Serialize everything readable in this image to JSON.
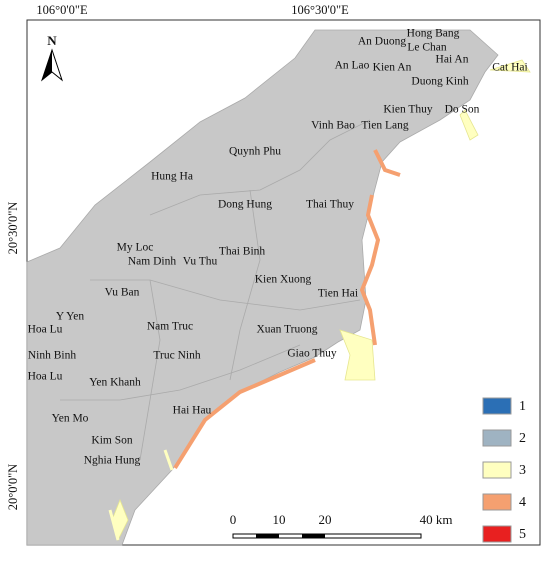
{
  "north_arrow": "N",
  "coordinates": {
    "top": [
      "106°0'0\"E",
      "106°30'0\"E"
    ],
    "left": [
      "20°30'0\"N",
      "20°0'0\"N"
    ]
  },
  "places": [
    "An Duong",
    "Hong Bang",
    "Le Chan",
    "Hai An",
    "An Lao",
    "Kien An",
    "Cat Hai",
    "Duong Kinh",
    "Do Son",
    "Kien Thuy",
    "Vinh Bao",
    "Tien Lang",
    "Quynh Phu",
    "Hung Ha",
    "Dong Hung",
    "Thai Thuy",
    "My Loc",
    "Thai Binh",
    "Nam Dinh",
    "Vu Thu",
    "Kien Xuong",
    "Tien Hai",
    "Vu Ban",
    "Y Yen",
    "Hoa Lu",
    "Nam Truc",
    "Xuan Truong",
    "Ninh Binh",
    "Truc Ninh",
    "Giao Thuy",
    "Hoa Lu",
    "Yen Khanh",
    "Hai Hau",
    "Yen Mo",
    "Kim Son",
    "Nghia Hung"
  ],
  "legend": [
    "1",
    "2",
    "3",
    "4",
    "5"
  ],
  "scale_bar": [
    "0",
    "10",
    "20",
    "40 km"
  ]
}
